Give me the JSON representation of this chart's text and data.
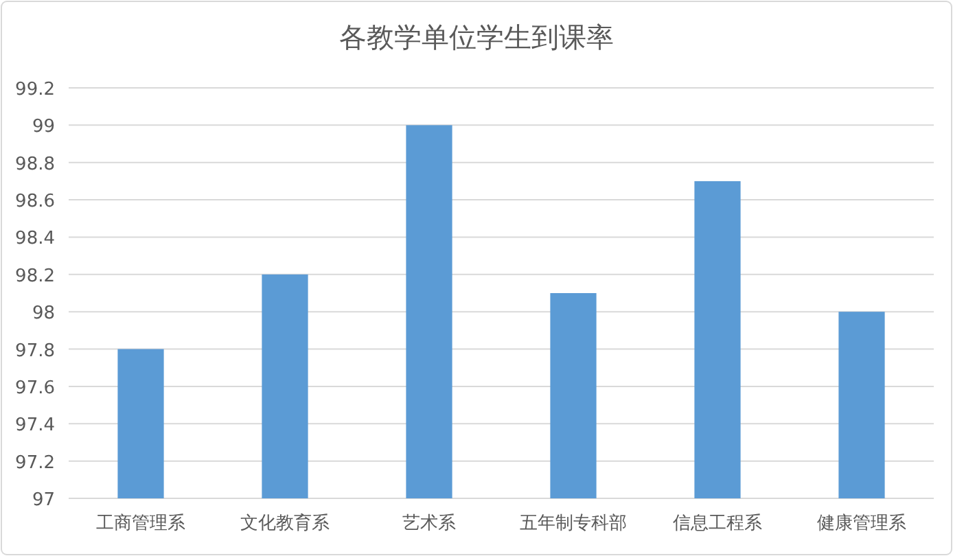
{
  "chart_data": {
    "type": "bar",
    "title": "各教学单位学生到课率",
    "categories": [
      "工商管理系",
      "文化教育系",
      "艺术系",
      "五年制专科部",
      "信息工程系",
      "健康管理系"
    ],
    "values": [
      97.8,
      98.2,
      99,
      98.1,
      98.7,
      98
    ],
    "color": "#5b9bd5",
    "ylim": [
      97,
      99.2
    ],
    "yticks": [
      97,
      97.2,
      97.4,
      97.6,
      97.8,
      98,
      98.2,
      98.4,
      98.6,
      98.8,
      99,
      99.2
    ],
    "grid": "y"
  }
}
